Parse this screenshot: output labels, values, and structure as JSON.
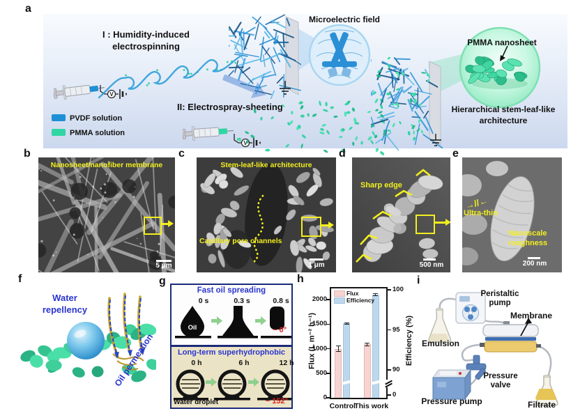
{
  "panels": {
    "a": {
      "label": "a",
      "step1_line1": "I :  Humidity-induced",
      "step1_line2": "electrospinning",
      "step2": "II:  Electrospray-sheeting",
      "microfield": "Microelectric field",
      "pmma_nanosheet": "PMMA nanosheet",
      "architecture_line1": "Hierarchical stem-leaf-like",
      "architecture_line2": "architecture",
      "legend": [
        {
          "label": "PVDF solution",
          "color": "#1e8fd5"
        },
        {
          "label": "PMMA solution",
          "color": "#2fd6a3"
        }
      ]
    },
    "b": {
      "label": "b",
      "title": "Nanosheet/nanofiber membrane",
      "scale": "5 μm"
    },
    "c": {
      "label": "c",
      "title": "Stem-leaf-like architecture",
      "annotation": "Capillary pore channels",
      "scale": "1 μm"
    },
    "d": {
      "label": "d",
      "annotation": "Sharp edge",
      "scale": "500 nm"
    },
    "e": {
      "label": "e",
      "annotation_thin": "Ultra-thin",
      "annotation_mark": "→//←",
      "annotation_rough_line1": "Nanoscale",
      "annotation_rough_line2": "roughness",
      "scale": "200 nm"
    },
    "f": {
      "label": "f",
      "water_line1": "Water",
      "water_line2": "repellency",
      "oil": "Oil permeation"
    },
    "g": {
      "label": "g",
      "top": {
        "title": "Fast oil spreading",
        "times": [
          "0 s",
          "0.3 s",
          "0.8 s"
        ],
        "droplet": "Oil",
        "angle": "~ 0°"
      },
      "bottom": {
        "title": "Long-term superhydrophobic",
        "times": [
          "0 h",
          "6 h",
          "12 h"
        ],
        "caption": "Water droplet",
        "angle": "~ 152°"
      }
    },
    "h": {
      "label": "h"
    },
    "i": {
      "label": "i",
      "peristaltic_line1": "Peristaltic",
      "peristaltic_line2": "pump",
      "membrane": "Membrane",
      "emulsion": "Emulsion",
      "valve_line1": "Pressure",
      "valve_line2": "valve",
      "pump": "Pressure pump",
      "filtrate": "Filtrate"
    }
  },
  "chart_data": {
    "type": "bar",
    "categories": [
      "Control",
      "This work"
    ],
    "series": [
      {
        "name": "Flux",
        "axis": "left",
        "color": "#f7d4d1",
        "edge": "#e3b7b3",
        "values": [
          1000,
          1090
        ],
        "errors": [
          60,
          35
        ]
      },
      {
        "name": "Efficiency",
        "axis": "right",
        "color": "#bdd8ec",
        "edge": "#a2c3df",
        "values": [
          95.8,
          99.4
        ],
        "errors": [
          0.15,
          0.15
        ]
      }
    ],
    "title": "",
    "xlabel": "",
    "ylabel_left": "Flux (L m⁻² h⁻¹)",
    "ylabel_right": "Efficiency (%)",
    "yticks_left": [
      0,
      500,
      1000,
      1500,
      2000
    ],
    "yticks_right": [
      0,
      90,
      95,
      100
    ],
    "ylim_left": [
      0,
      2200
    ],
    "axis_break": true,
    "legend_position": "top-left"
  }
}
